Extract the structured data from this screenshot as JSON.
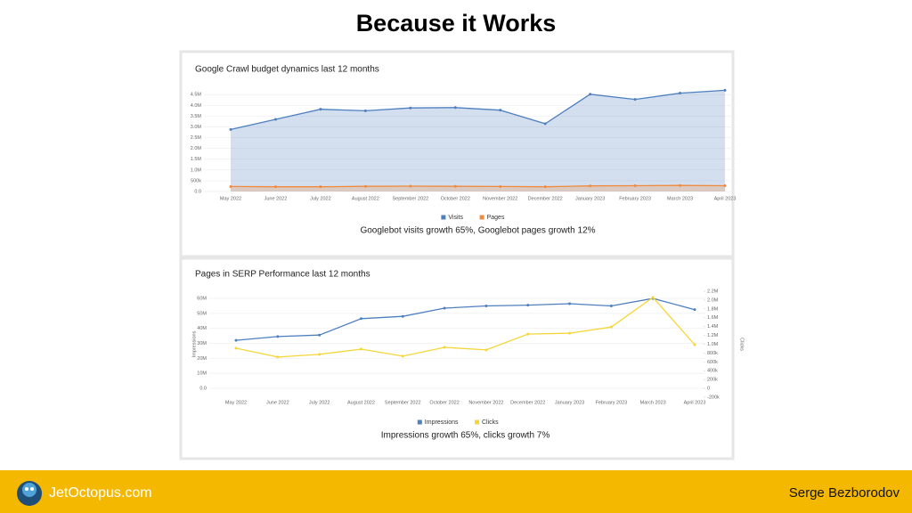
{
  "slide": {
    "title": "Because it Works",
    "brand": "JetOctopus.com",
    "author": "Serge Bezborodov"
  },
  "chart_data": [
    {
      "type": "area",
      "title": "Google Crawl budget dynamics last 12 months",
      "caption": "Googlebot visits growth 65%, Googlebot pages growth 12%",
      "categories": [
        "May 2022",
        "June 2022",
        "July 2022",
        "August 2022",
        "September 2022",
        "October 2022",
        "November 2022",
        "December 2022",
        "January 2023",
        "February 2023",
        "March 2023",
        "April 2023"
      ],
      "series": [
        {
          "name": "Visits",
          "color": "#4e7fbf",
          "values": [
            2880000,
            3350000,
            3820000,
            3750000,
            3880000,
            3900000,
            3780000,
            3150000,
            4520000,
            4280000,
            4570000,
            4700000
          ]
        },
        {
          "name": "Pages",
          "color": "#f08a3c",
          "values": [
            230000,
            220000,
            220000,
            240000,
            250000,
            240000,
            230000,
            220000,
            260000,
            270000,
            280000,
            270000
          ]
        }
      ],
      "ylim": [
        0,
        4800000
      ],
      "yticks": [
        {
          "value": 0,
          "label": "0.0"
        },
        {
          "value": 500000,
          "label": "500k"
        },
        {
          "value": 1000000,
          "label": "1.0M"
        },
        {
          "value": 1500000,
          "label": "1.5M"
        },
        {
          "value": 2000000,
          "label": "2.0M"
        },
        {
          "value": 2500000,
          "label": "2.5M"
        },
        {
          "value": 3000000,
          "label": "3.0M"
        },
        {
          "value": 3500000,
          "label": "3.5M"
        },
        {
          "value": 4000000,
          "label": "4.0M"
        },
        {
          "value": 4500000,
          "label": "4.5M"
        }
      ],
      "grid": true,
      "legend": "bottom"
    },
    {
      "type": "line",
      "title": "Pages in SERP Performance last 12 months",
      "caption": "Impressions growth 65%, clicks growth 7%",
      "ylabel": "Impressions",
      "y2label": "Clicks",
      "categories": [
        "May 2022",
        "June 2022",
        "July 2022",
        "August 2022",
        "September 2022",
        "October 2022",
        "November 2022",
        "December 2022",
        "January 2023",
        "February 2023",
        "March 2023",
        "April 2023"
      ],
      "series": [
        {
          "name": "Impressions",
          "color": "#4e7fbf",
          "values": [
            32000000,
            34500000,
            35500000,
            46500000,
            48000000,
            53500000,
            55000000,
            55500000,
            56500000,
            55000000,
            60000000,
            52500000
          ]
        },
        {
          "name": "Clicks",
          "color": "#f5d63a",
          "axis": "y2",
          "values": [
            910000,
            710000,
            770000,
            890000,
            730000,
            930000,
            870000,
            1230000,
            1250000,
            1390000,
            2060000,
            990000
          ]
        }
      ],
      "ylim": [
        -6000000,
        64800000
      ],
      "yticks": [
        {
          "value": 0,
          "label": "0.0"
        },
        {
          "value": 10000000,
          "label": "10M"
        },
        {
          "value": 20000000,
          "label": "20M"
        },
        {
          "value": 30000000,
          "label": "30M"
        },
        {
          "value": 40000000,
          "label": "40M"
        },
        {
          "value": 50000000,
          "label": "50M"
        },
        {
          "value": 60000000,
          "label": "60M"
        }
      ],
      "y2lim": [
        -200000,
        2200000
      ],
      "y2ticks": [
        {
          "value": -200000,
          "label": "-200k"
        },
        {
          "value": 0,
          "label": "0"
        },
        {
          "value": 200000,
          "label": "200k"
        },
        {
          "value": 400000,
          "label": "400k"
        },
        {
          "value": 600000,
          "label": "600k"
        },
        {
          "value": 800000,
          "label": "800k"
        },
        {
          "value": 1000000,
          "label": "1.0M"
        },
        {
          "value": 1200000,
          "label": "1.2M"
        },
        {
          "value": 1400000,
          "label": "1.4M"
        },
        {
          "value": 1600000,
          "label": "1.6M"
        },
        {
          "value": 1800000,
          "label": "1.8M"
        },
        {
          "value": 2000000,
          "label": "2.0M"
        },
        {
          "value": 2200000,
          "label": "2.2M"
        }
      ],
      "grid": true,
      "legend": "bottom"
    }
  ]
}
